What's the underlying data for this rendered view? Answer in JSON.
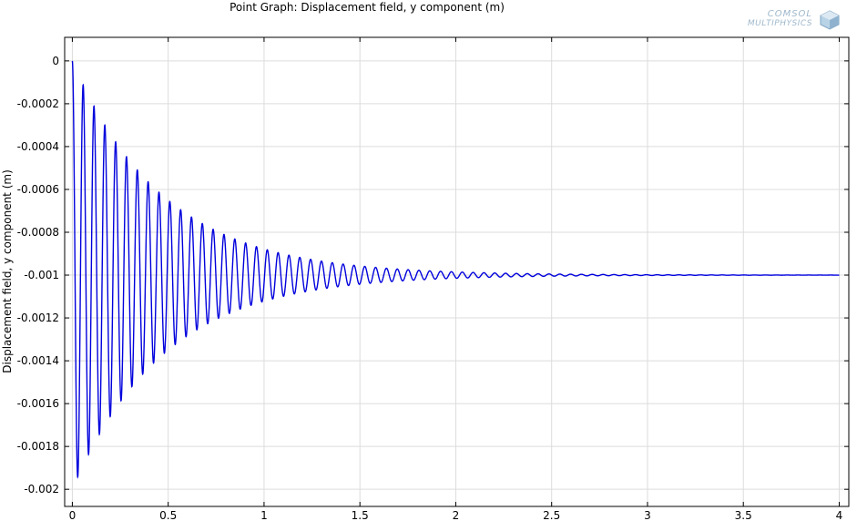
{
  "chart_data": {
    "type": "line",
    "title": "Point Graph: Displacement field, y component (m)",
    "xlabel": "",
    "ylabel": "Displacement field, y component (m)",
    "xlim": [
      -0.04,
      4.05
    ],
    "ylim": [
      -0.00208,
      0.00011
    ],
    "x_ticks": [
      0,
      0.5,
      1,
      1.5,
      2,
      2.5,
      3,
      3.5,
      4
    ],
    "x_tick_labels": [
      "0",
      "0.5",
      "1",
      "1.5",
      "2",
      "2.5",
      "3",
      "3.5",
      "4"
    ],
    "y_ticks": [
      0,
      -0.0002,
      -0.0004,
      -0.0006,
      -0.0008,
      -0.001,
      -0.0012,
      -0.0014,
      -0.0016,
      -0.0018,
      -0.002
    ],
    "y_tick_labels": [
      "0",
      "-0.0002",
      "-0.0004",
      "-0.0006",
      "-0.0008",
      "-0.001",
      "-0.0012",
      "-0.0014",
      "-0.0016",
      "-0.0018",
      "-0.002"
    ],
    "grid": true,
    "series": [
      {
        "color": "#0000dd",
        "equilibrium": -0.001,
        "period": 0.0565,
        "decay_rate": 2.1,
        "initial_amplitude": 0.001,
        "t_end": 4
      }
    ]
  },
  "logo": {
    "line1": "COMSOL",
    "line2": "MULTIPHYSICS"
  }
}
